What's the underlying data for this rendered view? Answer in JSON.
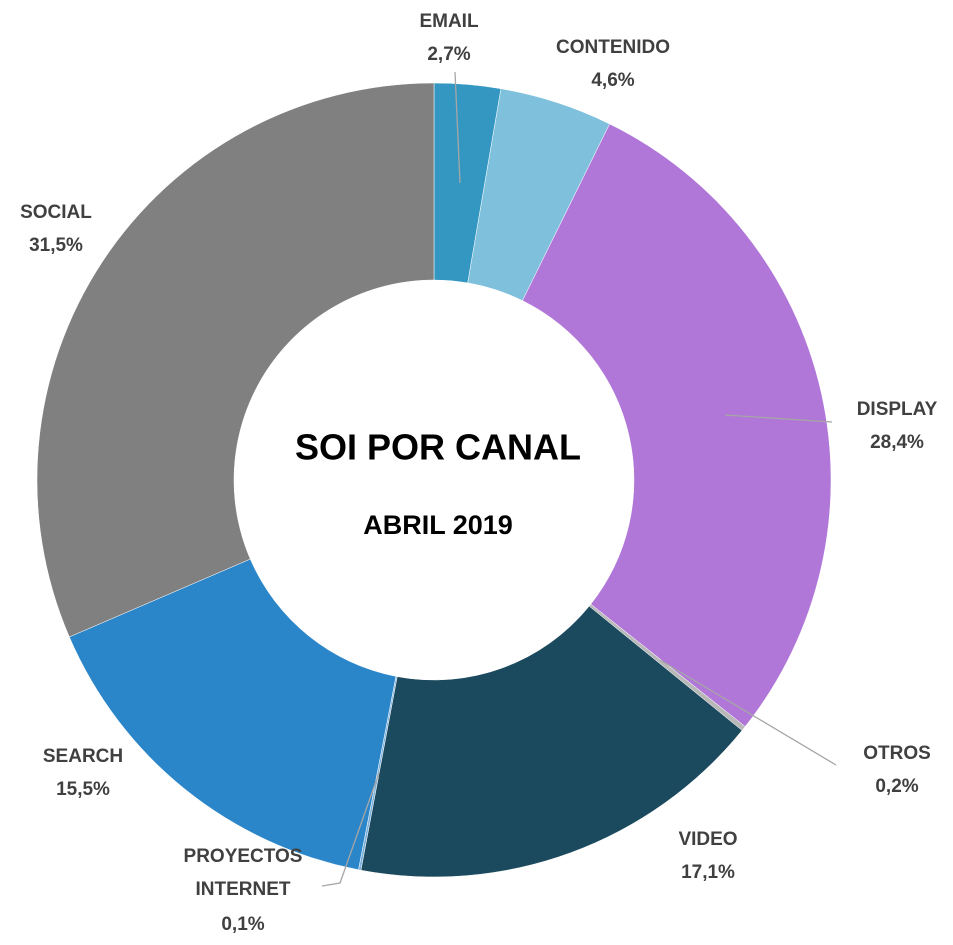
{
  "chart_data": {
    "type": "donut",
    "title": "SOI POR CANAL",
    "subtitle": "ABRIL 2019",
    "categories": [
      "EMAIL",
      "CONTENIDO",
      "DISPLAY",
      "OTROS",
      "VIDEO",
      "PROYECTOS INTERNET",
      "SEARCH",
      "SOCIAL"
    ],
    "values": [
      2.7,
      4.6,
      28.4,
      0.2,
      17.1,
      0.1,
      15.5,
      31.5
    ],
    "value_labels": [
      "2,7%",
      "4,6%",
      "28,4%",
      "0,2%",
      "17,1%",
      "0,1%",
      "15,5%",
      "31,5%"
    ],
    "colors": [
      "#3497c2",
      "#7fc1dd",
      "#b077d8",
      "#b8b8b8",
      "#1b4a5e",
      "#7ab0dc",
      "#2a86c9",
      "#808080"
    ]
  }
}
